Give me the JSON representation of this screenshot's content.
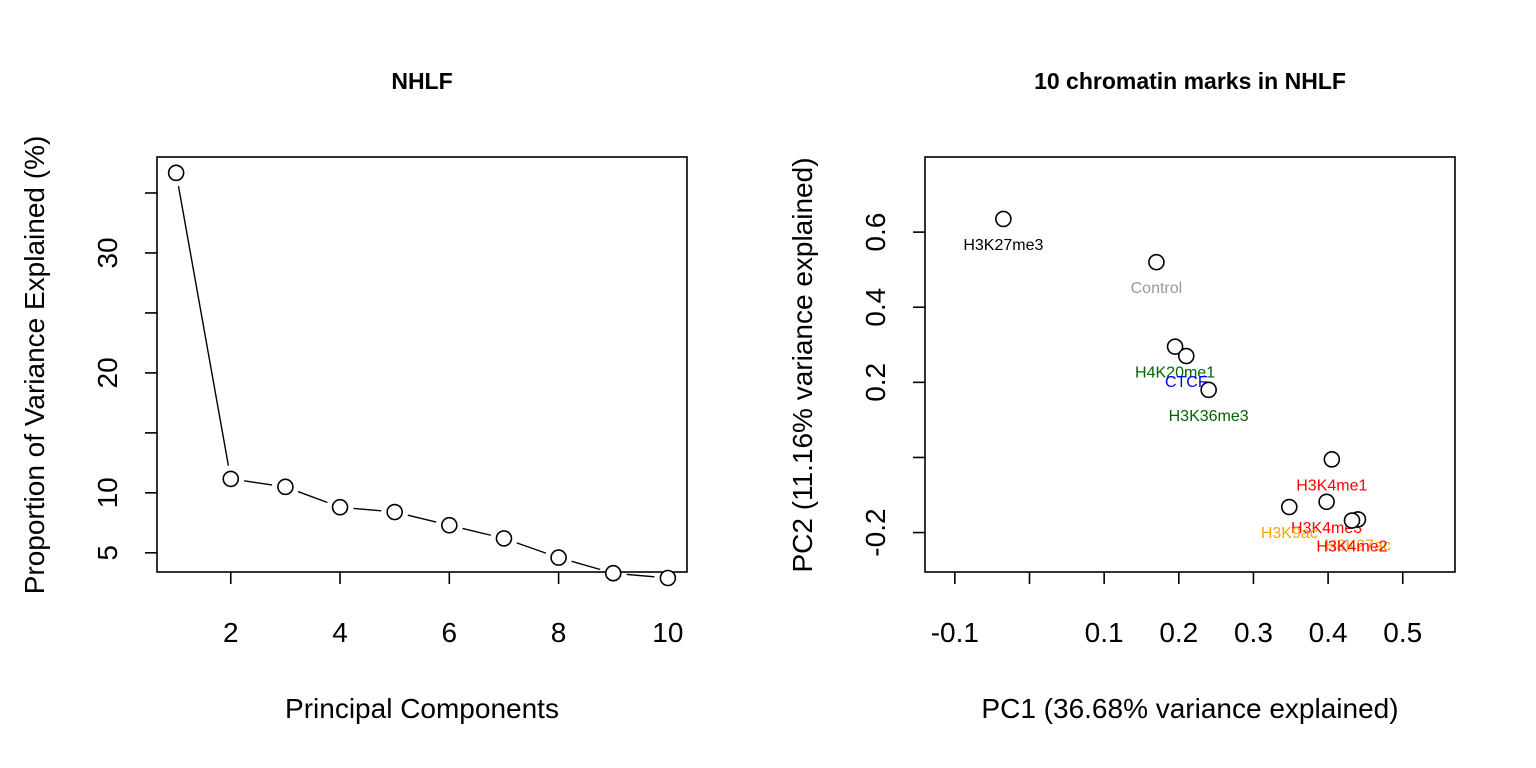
{
  "chart_data": [
    {
      "type": "line",
      "title": "NHLF",
      "xlabel": "Principal Components",
      "ylabel": "Proportion of Variance Explained (%)",
      "xlim": [
        0.65,
        10.35
      ],
      "ylim": [
        3.4,
        38.0
      ],
      "xticks": [
        2,
        4,
        6,
        8,
        10
      ],
      "xtick_labels": [
        "2",
        "4",
        "6",
        "8",
        "10"
      ],
      "yticks": [
        5,
        10,
        15,
        20,
        25,
        30,
        35
      ],
      "ytick_labels": [
        "5",
        "10",
        "",
        "20",
        "",
        "30",
        ""
      ],
      "grid": false,
      "series": [
        {
          "x": [
            1,
            2,
            3,
            4,
            5,
            6,
            7,
            8,
            9,
            10
          ],
          "values": [
            36.68,
            11.16,
            10.5,
            8.8,
            8.4,
            7.3,
            6.2,
            4.6,
            3.3,
            2.9
          ]
        }
      ]
    },
    {
      "type": "scatter",
      "title": "10 chromatin marks in NHLF",
      "xlabel": "PC1 (36.68% variance explained)",
      "ylabel": "PC2 (11.16% variance explained)",
      "xlim": [
        -0.14,
        0.57
      ],
      "ylim": [
        -0.305,
        0.8
      ],
      "xticks": [
        -0.1,
        0.0,
        0.1,
        0.2,
        0.3,
        0.4,
        0.5
      ],
      "xtick_labels": [
        "-0.1",
        "",
        "0.1",
        "0.2",
        "0.3",
        "0.4",
        "0.5"
      ],
      "yticks": [
        -0.2,
        0.0,
        0.2,
        0.4,
        0.6
      ],
      "ytick_labels": [
        "-0.2",
        "",
        "0.2",
        "0.4",
        "0.6"
      ],
      "grid": false,
      "points": [
        {
          "label": "H3K27me3",
          "x": -0.035,
          "y": 0.635,
          "color": "#000000"
        },
        {
          "label": "Control",
          "x": 0.17,
          "y": 0.52,
          "color": "#999999"
        },
        {
          "label": "H4K20me1",
          "x": 0.195,
          "y": 0.295,
          "color": "#006400"
        },
        {
          "label": "CTCF",
          "x": 0.21,
          "y": 0.27,
          "color": "#0000FF"
        },
        {
          "label": "H3K36me3",
          "x": 0.24,
          "y": 0.18,
          "color": "#006400"
        },
        {
          "label": "H3K4me1",
          "x": 0.405,
          "y": -0.005,
          "color": "#FF0000"
        },
        {
          "label": "H3K4me3",
          "x": 0.398,
          "y": -0.118,
          "color": "#FF0000"
        },
        {
          "label": "H3K9ac",
          "x": 0.348,
          "y": -0.132,
          "color": "#FFA500"
        },
        {
          "label": "H3K27ac",
          "x": 0.44,
          "y": -0.165,
          "color": "#FFA500"
        },
        {
          "label": "H3K4me2",
          "x": 0.432,
          "y": -0.168,
          "color": "#FF0000"
        }
      ]
    }
  ]
}
